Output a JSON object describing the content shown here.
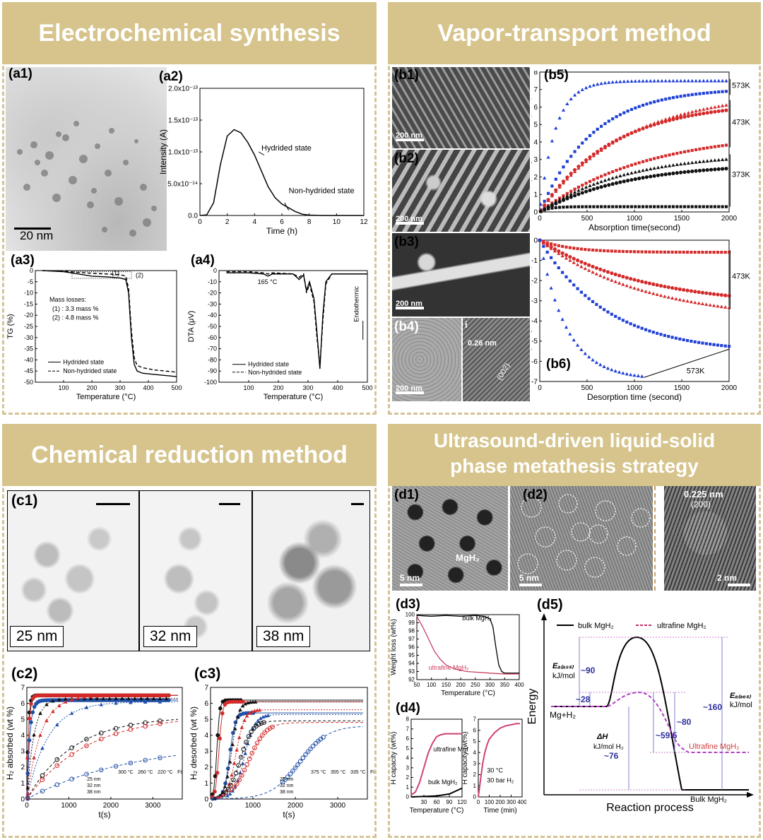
{
  "sections": {
    "a": "Electrochemical synthesis",
    "b": "Vapor-transport method",
    "c": "Chemical reduction method",
    "d": "Ultrasound-driven liquid-solid phase metathesis strategy"
  },
  "labels": {
    "a1": "(a1)",
    "a2": "(a2)",
    "a3": "(a3)",
    "a4": "(a4)",
    "b1": "(b1)",
    "b2": "(b2)",
    "b3": "(b3)",
    "b4": "(b4)",
    "b5": "(b5)",
    "b6": "(b6)",
    "c1": "(c1)",
    "c2": "(c2)",
    "c3": "(c3)",
    "d1": "(d1)",
    "d2": "(d2)",
    "d3": "(d3)",
    "d4": "(d4)",
    "d5": "(d5)",
    "b4i": "i"
  },
  "scales": {
    "a1": "20 nm",
    "b1": "200 nm",
    "b2": "200 nm",
    "b3": "200 nm",
    "b4": "200 nm",
    "d1": "5 nm",
    "d2": "5 nm",
    "d2b": "2 nm",
    "b4d": "0.26 nm",
    "b4h": "(002)",
    "d2d": "0.225 nm",
    "d2h": "(200)",
    "d1m": "MgH₂"
  },
  "c1": {
    "s1": "25 nm",
    "s2": "32 nm",
    "s3": "38 nm"
  },
  "chart_data": [
    {
      "id": "a2",
      "type": "line",
      "xlabel": "Time (h)",
      "ylabel": "Intensity (A)",
      "xlim": [
        0,
        12
      ],
      "ylim": [
        0,
        2e-13
      ],
      "xticks": [
        "0",
        "2",
        "4",
        "6",
        "8",
        "10",
        "12"
      ],
      "yticks": [
        "0.0",
        "5.0x10⁻¹⁴",
        "1.0x10⁻¹³",
        "1.5x10⁻¹³",
        "2.0x10⁻¹³"
      ],
      "annotations": [
        "Hydrided state",
        "Non-hydrided state"
      ],
      "series": [
        {
          "x": [
            0,
            0.5,
            1,
            1.5,
            2,
            2.5,
            3,
            3.5,
            4,
            4.5,
            5,
            5.5,
            6,
            6.5,
            7,
            7.5,
            8,
            9,
            12
          ],
          "values": [
            0,
            1e-15,
            2e-14,
            8e-14,
            1.25e-13,
            1.35e-13,
            1.3e-13,
            1.15e-13,
            9.5e-14,
            7e-14,
            4.5e-14,
            2.8e-14,
            1.8e-14,
            1.2e-14,
            6e-15,
            2e-15,
            5e-16,
            0,
            0
          ]
        },
        {
          "x": [
            0,
            12
          ],
          "values": [
            0,
            0
          ]
        }
      ]
    },
    {
      "id": "a3",
      "type": "line",
      "xlabel": "Temperature (°C)",
      "ylabel": "TG (%)",
      "xlim": [
        0,
        500
      ],
      "ylim": [
        -50,
        0
      ],
      "xticks": [
        "100",
        "200",
        "300",
        "400",
        "500"
      ],
      "yticks": [
        "0",
        "-5",
        "-10",
        "-15",
        "-20",
        "-25",
        "-30",
        "-35",
        "-40",
        "-45",
        "-50"
      ],
      "annotations": [
        "(1)",
        "(2)",
        "Mass losses:",
        "(1) : 3.3 mass %",
        "(2) : 4.8 mass %"
      ],
      "legend": [
        "Hydrided state",
        "Non-hydrided state"
      ],
      "series": [
        {
          "x": [
            25,
            100,
            150,
            200,
            250,
            300,
            320,
            330,
            340,
            350,
            360,
            380,
            420,
            500
          ],
          "values": [
            0,
            -0.5,
            -1.5,
            -2.5,
            -2.8,
            -3.3,
            -4,
            -10,
            -30,
            -42,
            -45,
            -46,
            -46.5,
            -47.5
          ]
        },
        {
          "x": [
            25,
            100,
            150,
            200,
            250,
            300,
            320,
            330,
            340,
            350,
            360,
            380,
            420,
            500
          ],
          "values": [
            0,
            -0.3,
            -0.8,
            -1.2,
            -1.5,
            -1.8,
            -2.5,
            -8,
            -27,
            -39,
            -42.5,
            -43.5,
            -44.5,
            -45.5
          ]
        }
      ]
    },
    {
      "id": "a4",
      "type": "line",
      "xlabel": "Temperature (°C)",
      "ylabel": "DTA (μV)",
      "xlim": [
        0,
        500
      ],
      "ylim": [
        -100,
        0
      ],
      "xticks": [
        "100",
        "200",
        "300",
        "400",
        "500"
      ],
      "yticks": [
        "0",
        "-10",
        "-20",
        "-30",
        "-40",
        "-50",
        "-60",
        "-70",
        "-80",
        "-90",
        "-100"
      ],
      "annotations": [
        "165 °C",
        "Endothermic"
      ],
      "legend": [
        "Hydrided state",
        "Non-hydrided state"
      ],
      "series": [
        {
          "x": [
            25,
            100,
            150,
            165,
            180,
            250,
            270,
            285,
            295,
            305,
            320,
            330,
            340,
            350,
            360,
            380,
            500
          ],
          "values": [
            -2,
            -2,
            -3,
            -5,
            -3,
            -3,
            -8,
            -4,
            -18,
            -10,
            -25,
            -55,
            -88,
            -40,
            -10,
            -3,
            -3
          ]
        },
        {
          "x": [
            25,
            100,
            150,
            165,
            180,
            250,
            270,
            285,
            295,
            305,
            320,
            330,
            340,
            350,
            360,
            380,
            500
          ],
          "values": [
            -1,
            -1,
            -2,
            -3,
            -2,
            -3,
            -6,
            -3,
            -20,
            -12,
            -28,
            -60,
            -85,
            -45,
            -12,
            -3,
            -3
          ]
        }
      ]
    },
    {
      "id": "b5",
      "type": "scatter",
      "xlabel": "Absorption time(second)",
      "ylabel": "Hydrogen content (wt%)",
      "xlim": [
        0,
        2000
      ],
      "ylim": [
        0,
        8
      ],
      "xticks": [
        "0",
        "500",
        "1000",
        "1500",
        "2000"
      ],
      "yticks": [
        "0",
        "1",
        "2",
        "3",
        "4",
        "5",
        "6",
        "7",
        "8"
      ],
      "annotations": [
        "573K",
        "473K",
        "373K"
      ],
      "series": [
        {
          "color": "#1f3fd6",
          "shape": "triangle",
          "plateau": 7.5,
          "rate": 0.006
        },
        {
          "color": "#1f3fd6",
          "shape": "square",
          "plateau": 7.1,
          "rate": 0.0018
        },
        {
          "color": "#d42a2a",
          "shape": "triangle",
          "plateau": 6.9,
          "rate": 0.0011
        },
        {
          "color": "#d42a2a",
          "shape": "circle",
          "plateau": 6.3,
          "rate": 0.0013
        },
        {
          "color": "#d42a2a",
          "shape": "square",
          "plateau": 4.6,
          "rate": 0.0009
        },
        {
          "color": "#111111",
          "shape": "triangle",
          "plateau": 3.4,
          "rate": 0.0011
        },
        {
          "color": "#111111",
          "shape": "circle",
          "plateau": 2.8,
          "rate": 0.0011
        },
        {
          "color": "#111111",
          "shape": "square",
          "plateau": 0.3,
          "rate": 0.01
        }
      ]
    },
    {
      "id": "b6",
      "type": "scatter",
      "xlabel": "Desorption time (second)",
      "ylabel": "Hydrogen content (wt%)",
      "xlim": [
        0,
        2000
      ],
      "ylim": [
        -7,
        0
      ],
      "xticks": [
        "0",
        "500",
        "1000",
        "1500",
        "2000"
      ],
      "yticks": [
        "0",
        "-1",
        "-2",
        "-3",
        "-4",
        "-5",
        "-6",
        "-7"
      ],
      "annotations": [
        "473K",
        "573K"
      ],
      "series": [
        {
          "color": "#d42a2a",
          "shape": "square",
          "plateau": -0.6,
          "rate": 0.003,
          "xmax": 2000
        },
        {
          "color": "#d42a2a",
          "shape": "circle",
          "plateau": -3.3,
          "rate": 0.0009,
          "xmax": 2000
        },
        {
          "color": "#d42a2a",
          "shape": "triangle",
          "plateau": -4.0,
          "rate": 0.0009,
          "xmax": 2000
        },
        {
          "color": "#1f3fd6",
          "shape": "square",
          "plateau": -5.6,
          "rate": 0.0014,
          "xmax": 2000
        },
        {
          "color": "#1f3fd6",
          "shape": "triangle",
          "plateau": -6.9,
          "rate": 0.0035,
          "xmax": 1100
        }
      ]
    },
    {
      "id": "c2",
      "type": "scatter",
      "xlabel": "t(s)",
      "ylabel": "H₂ absorbed (wt %)",
      "xlim": [
        0,
        3700
      ],
      "ylim": [
        0,
        7
      ],
      "xticks": [
        "0",
        "1000",
        "2000",
        "3000"
      ],
      "yticks": [
        "0",
        "1",
        "2",
        "3",
        "4",
        "5",
        "6",
        "7"
      ],
      "legend_cols": [
        "300 °C",
        "260 °C",
        "220 °C",
        "Fit"
      ],
      "legend_rows": [
        "25 nm",
        "32 nm",
        "38 nm"
      ],
      "series": [
        {
          "color": "#111",
          "shape": "circle",
          "plateau": 6.5,
          "rate": 0.03
        },
        {
          "color": "#d42a2a",
          "shape": "circle",
          "plateau": 6.5,
          "rate": 0.025
        },
        {
          "color": "#2050a8",
          "shape": "circle",
          "plateau": 6.2,
          "rate": 0.015
        },
        {
          "color": "#111",
          "shape": "triangle",
          "plateau": 6.3,
          "rate": 0.006
        },
        {
          "color": "#d42a2a",
          "shape": "triangle",
          "plateau": 6.5,
          "rate": 0.003
        },
        {
          "color": "#2050a8",
          "shape": "triangle",
          "plateau": 6.1,
          "rate": 0.002
        },
        {
          "color": "#111",
          "shape": "ocircle",
          "plateau": 5.2,
          "rate": 0.0009
        },
        {
          "color": "#d42a2a",
          "shape": "ocircle",
          "plateau": 5.3,
          "rate": 0.0007
        },
        {
          "color": "#2050a8",
          "shape": "ocircle",
          "plateau": 3.6,
          "rate": 0.0004
        }
      ]
    },
    {
      "id": "c3",
      "type": "scatter",
      "xlabel": "t(s)",
      "ylabel": "H₂ desorbed (wt %)",
      "xlim": [
        0,
        3700
      ],
      "ylim": [
        0,
        7
      ],
      "xticks": [
        "0",
        "1000",
        "2000",
        "3000"
      ],
      "yticks": [
        "0",
        "1",
        "2",
        "3",
        "4",
        "5",
        "6",
        "7"
      ],
      "legend_cols": [
        "375 °C",
        "355 °C",
        "335 °C",
        "Fit"
      ],
      "legend_rows": [
        "25 nm",
        "32 nm",
        "38 nm"
      ],
      "series": [
        {
          "color": "#111",
          "shape": "circle",
          "plateau": 6.2,
          "mid": 150,
          "k": 0.03
        },
        {
          "color": "#d42a2a",
          "shape": "circle",
          "plateau": 6.1,
          "mid": 200,
          "k": 0.025
        },
        {
          "color": "#2050a8",
          "shape": "circle",
          "plateau": 5.4,
          "mid": 450,
          "k": 0.015
        },
        {
          "color": "#111",
          "shape": "triangle",
          "plateau": 6.1,
          "mid": 500,
          "k": 0.012
        },
        {
          "color": "#d42a2a",
          "shape": "triangle",
          "plateau": 5.6,
          "mid": 600,
          "k": 0.01
        },
        {
          "color": "#2050a8",
          "shape": "triangle",
          "plateau": 5.3,
          "mid": 800,
          "k": 0.008
        },
        {
          "color": "#111",
          "shape": "ocircle",
          "plateau": 4.9,
          "mid": 700,
          "k": 0.007
        },
        {
          "color": "#d42a2a",
          "shape": "ocircle",
          "plateau": 4.8,
          "mid": 900,
          "k": 0.005
        },
        {
          "color": "#2050a8",
          "shape": "ocircle",
          "plateau": 4.6,
          "mid": 2100,
          "k": 0.003
        }
      ]
    },
    {
      "id": "d3",
      "type": "line",
      "xlabel": "Temperature (°C)",
      "ylabel": "Weight loss (wt%)",
      "xlim": [
        50,
        400
      ],
      "ylim": [
        92,
        100
      ],
      "xticks": [
        "50",
        "100",
        "150",
        "200",
        "250",
        "300",
        "350",
        "400"
      ],
      "yticks": [
        "92",
        "93",
        "94",
        "95",
        "96",
        "97",
        "98",
        "99",
        "100"
      ],
      "series": [
        {
          "name": "bulk MgH₂",
          "color": "#000",
          "x": [
            50,
            100,
            150,
            200,
            250,
            280,
            300,
            310,
            320,
            330,
            340,
            350,
            400
          ],
          "values": [
            99.9,
            99.8,
            99.9,
            99.8,
            99.9,
            99.8,
            99.5,
            98.5,
            96,
            93.8,
            93,
            92.8,
            92.8
          ]
        },
        {
          "name": "ultrafine MgH₂",
          "color": "#c84060",
          "x": [
            50,
            70,
            90,
            110,
            130,
            150,
            180,
            220,
            260,
            300,
            350,
            400
          ],
          "values": [
            99.8,
            98.5,
            97,
            95.5,
            94.5,
            93.8,
            93.3,
            93,
            92.9,
            92.8,
            92.7,
            92.7
          ]
        }
      ]
    },
    {
      "id": "d4a",
      "type": "line",
      "xlabel": "Temperature (°C)",
      "ylabel": "H capacity (wt%)",
      "xlim": [
        0,
        120
      ],
      "ylim": [
        0,
        8
      ],
      "xticks": [
        "30",
        "60",
        "90",
        "120"
      ],
      "yticks": [
        "0",
        "1",
        "2",
        "3",
        "4",
        "5",
        "6",
        "7",
        "8"
      ],
      "series": [
        {
          "name": "ultrafine MgH₂",
          "color": "#d0407a",
          "x": [
            0,
            10,
            20,
            30,
            40,
            50,
            60,
            70,
            80,
            90,
            100,
            120
          ],
          "values": [
            0.2,
            0.5,
            1.5,
            3,
            4.5,
            5.5,
            6.2,
            6.4,
            6.5,
            6.5,
            6.5,
            6.5
          ]
        },
        {
          "name": "bulk MgH₂",
          "color": "#000",
          "x": [
            0,
            30,
            60,
            90,
            120
          ],
          "values": [
            0,
            0.05,
            0.1,
            0.3,
            0.9
          ]
        }
      ]
    },
    {
      "id": "d4b",
      "type": "line",
      "xlabel": "Time (min)",
      "ylabel": "H capacity (wt%)",
      "xlim": [
        0,
        400
      ],
      "ylim": [
        0,
        7
      ],
      "xticks": [
        "0",
        "100",
        "200",
        "300",
        "400"
      ],
      "yticks": [
        "0",
        "1",
        "2",
        "3",
        "4",
        "5",
        "6",
        "7"
      ],
      "annotations": [
        "30 °C",
        "30 bar H₂"
      ],
      "series": [
        {
          "color": "#d0407a",
          "x": [
            0,
            20,
            40,
            60,
            80,
            100,
            150,
            200,
            250,
            300,
            350,
            380
          ],
          "values": [
            0,
            1.5,
            3,
            4,
            4.7,
            5.2,
            5.8,
            6.2,
            6.4,
            6.5,
            6.6,
            6.6
          ]
        }
      ]
    },
    {
      "id": "d5",
      "type": "line",
      "xlabel": "Reaction process",
      "ylabel": "Energy",
      "legend": [
        "bulk MgH₂",
        "ultrafine MgH₂"
      ],
      "annotations": [
        "Eₐ₍ₐ₈ₛ₎",
        "kJ/mol",
        "~90",
        "~28",
        "ΔH",
        "kJ/mol H₂",
        "~76",
        "~59.5",
        "~80",
        "~160",
        "Eₐ₍ₔₑₛ₎",
        "kJ/mol",
        "Mg+H₂",
        "Ultrafine MgH₂",
        "Bulk MgH₂"
      ]
    }
  ]
}
